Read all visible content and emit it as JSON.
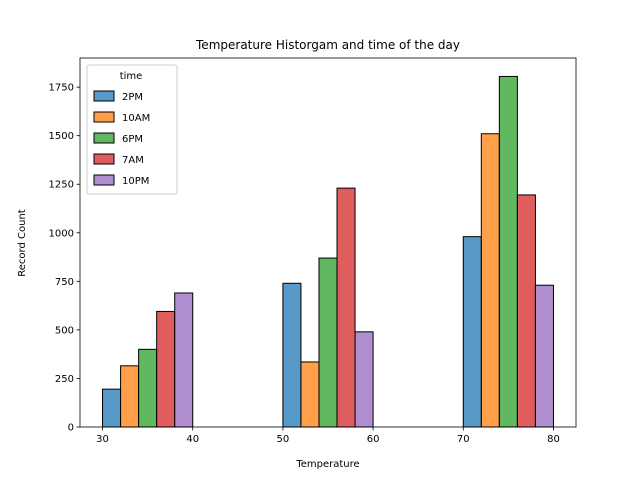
{
  "chart_data": {
    "type": "bar",
    "title": "Temperature Historgam and time of the day",
    "xlabel": "Temperature",
    "ylabel": "Record Count",
    "xlim": [
      27.5,
      82.5
    ],
    "ylim": [
      0,
      1900
    ],
    "xticks": [
      30,
      40,
      50,
      60,
      70,
      80
    ],
    "yticks": [
      0,
      250,
      500,
      750,
      1000,
      1250,
      1500,
      1750
    ],
    "grid": false,
    "legend": {
      "title": "time",
      "placement": "top-left"
    },
    "series": [
      {
        "name": "2PM",
        "color": "#1f77b4",
        "bars": [
          {
            "x0": 30,
            "x1": 32,
            "value": 195
          },
          {
            "x0": 50,
            "x1": 52,
            "value": 740
          },
          {
            "x0": 70,
            "x1": 72,
            "value": 980
          }
        ]
      },
      {
        "name": "10AM",
        "color": "#ff7f0e",
        "bars": [
          {
            "x0": 32,
            "x1": 34,
            "value": 315
          },
          {
            "x0": 52,
            "x1": 54,
            "value": 335
          },
          {
            "x0": 72,
            "x1": 74,
            "value": 1510
          }
        ]
      },
      {
        "name": "6PM",
        "color": "#2ca02c",
        "bars": [
          {
            "x0": 34,
            "x1": 36,
            "value": 400
          },
          {
            "x0": 54,
            "x1": 56,
            "value": 870
          },
          {
            "x0": 74,
            "x1": 76,
            "value": 1805
          }
        ]
      },
      {
        "name": "7AM",
        "color": "#d62728",
        "bars": [
          {
            "x0": 36,
            "x1": 38,
            "value": 595
          },
          {
            "x0": 56,
            "x1": 58,
            "value": 1230
          },
          {
            "x0": 76,
            "x1": 78,
            "value": 1195
          }
        ]
      },
      {
        "name": "10PM",
        "color": "#9467bd",
        "bars": [
          {
            "x0": 38,
            "x1": 40,
            "value": 690
          },
          {
            "x0": 58,
            "x1": 60,
            "value": 490
          },
          {
            "x0": 78,
            "x1": 80,
            "value": 730
          }
        ]
      }
    ]
  }
}
